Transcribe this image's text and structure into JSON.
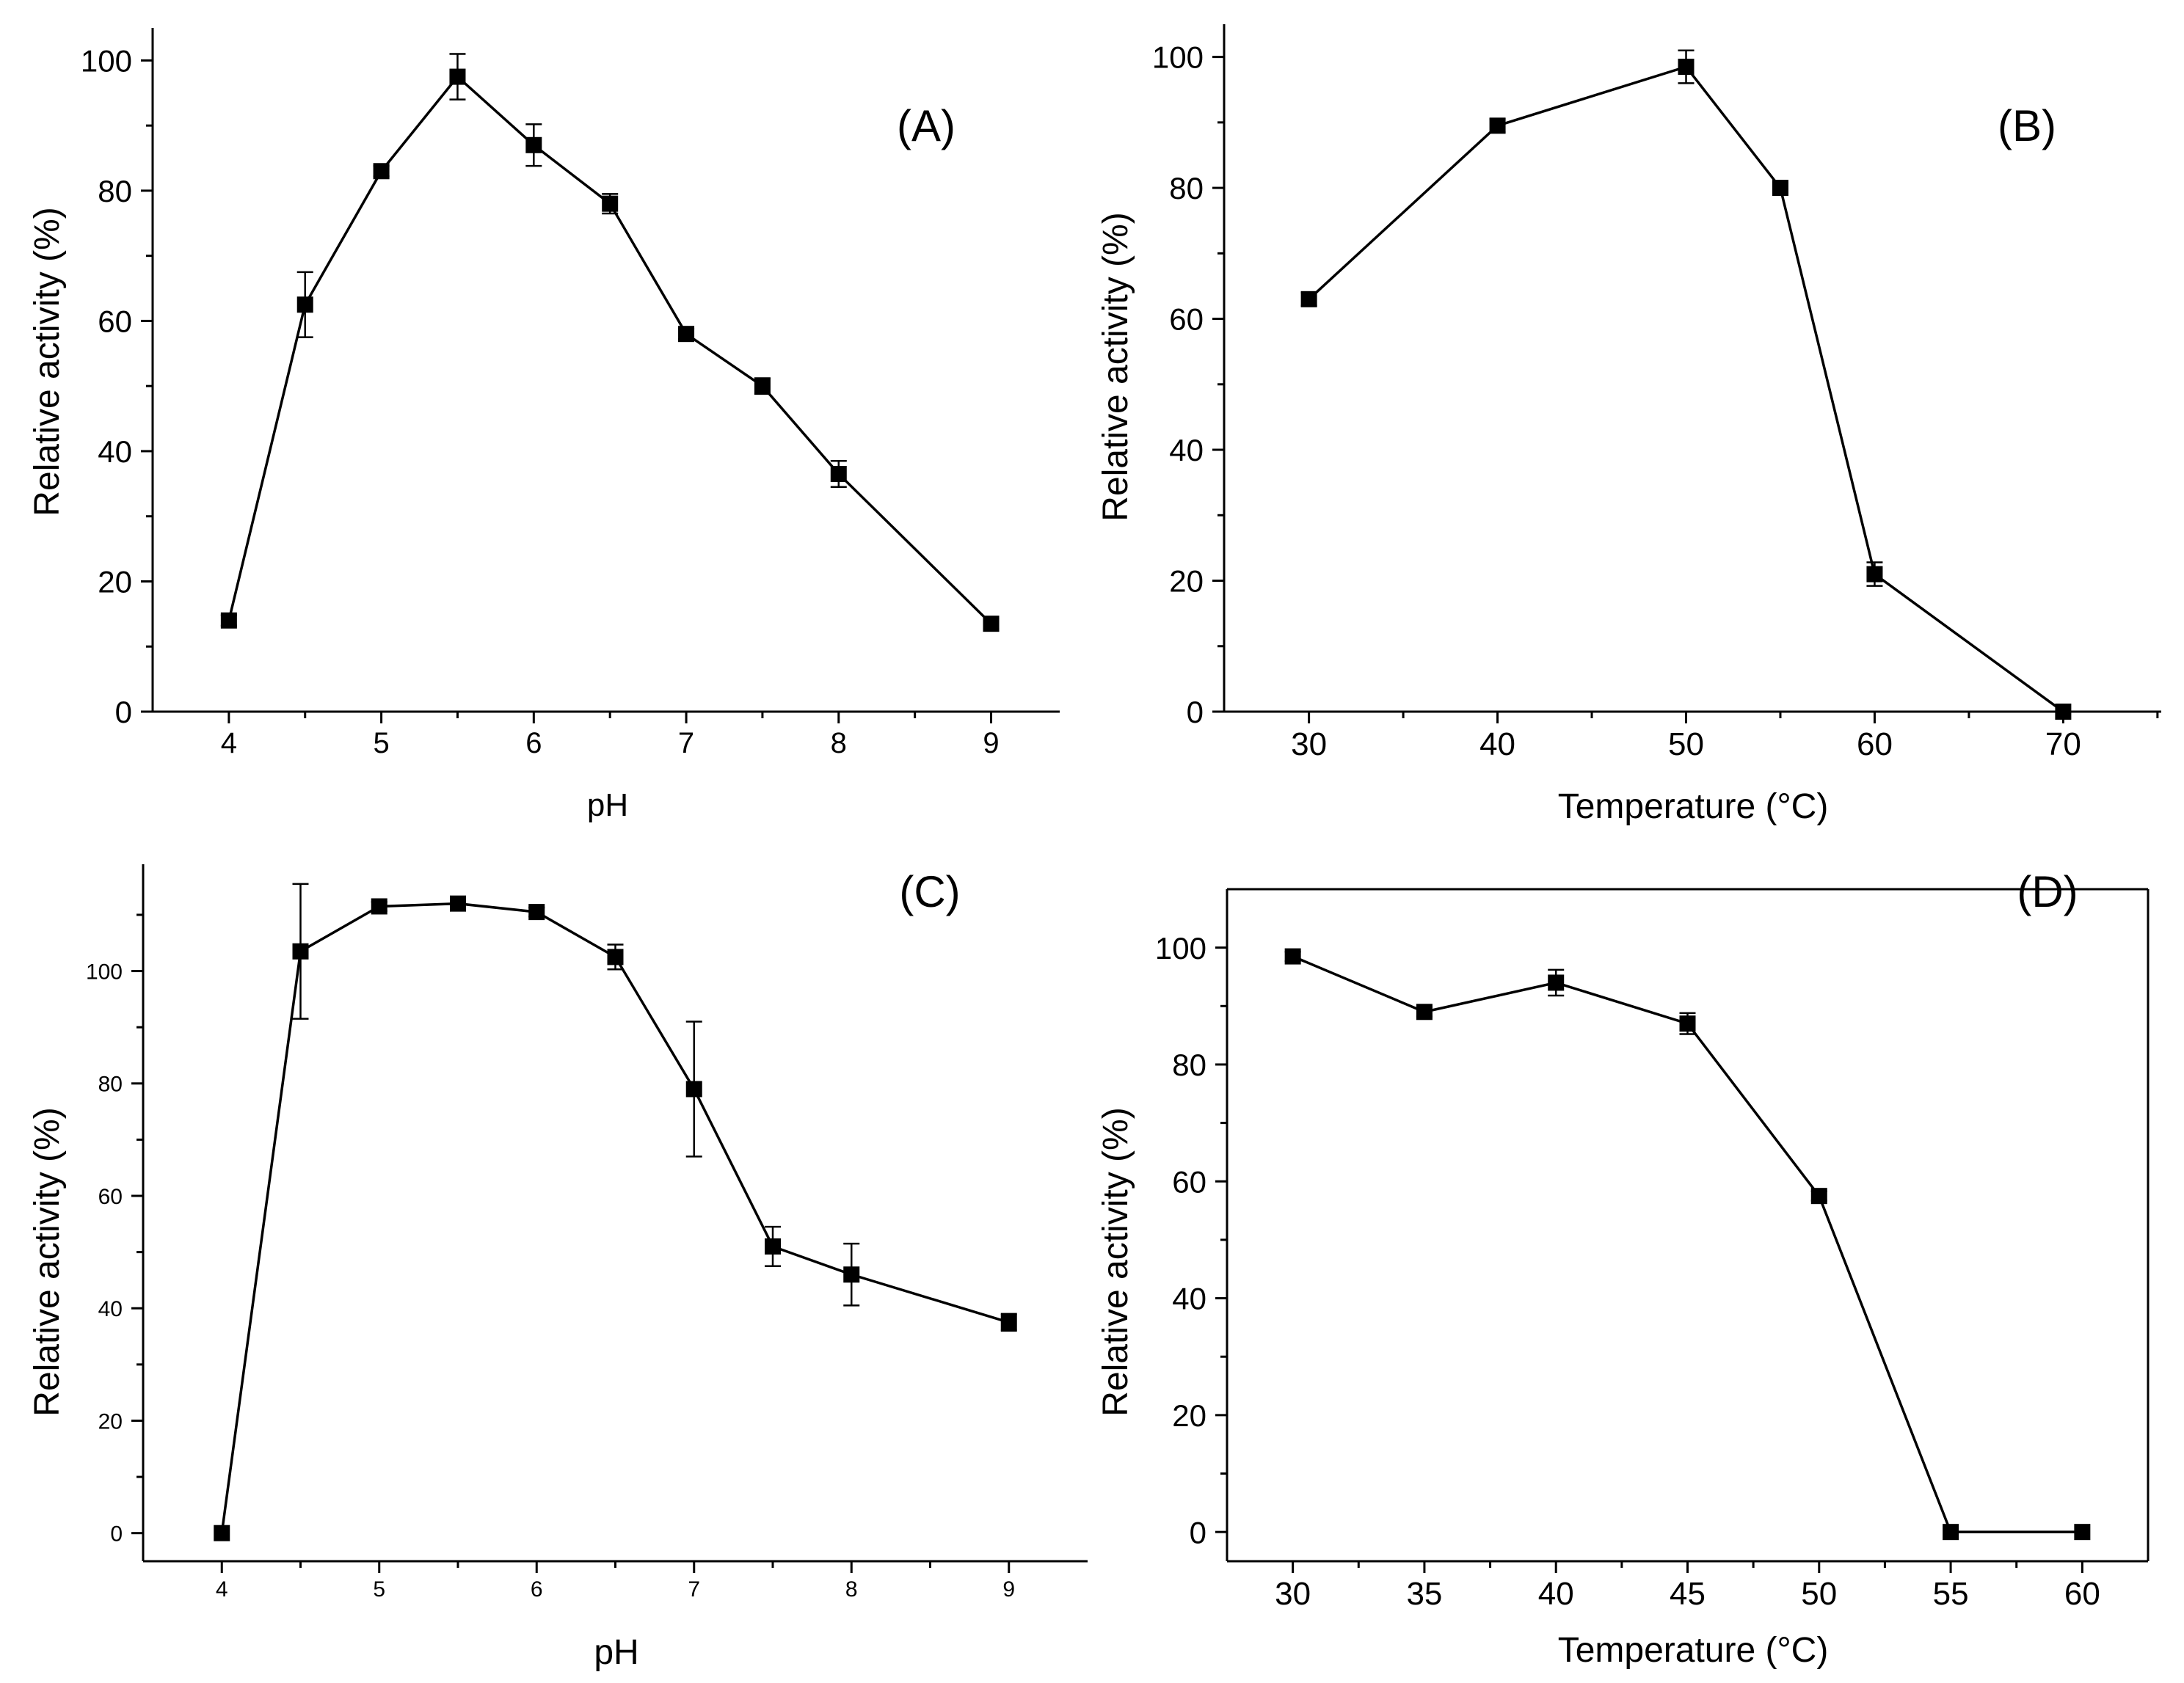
{
  "figure": {
    "colors": {
      "line": "#000000",
      "marker": "#000000",
      "axis": "#000000",
      "background": "#ffffff"
    }
  },
  "chart_data": [
    {
      "id": "A",
      "type": "line",
      "panel_label": "(A)",
      "title": "",
      "xlabel": "pH",
      "ylabel": "Relative activity (%)",
      "xlim": [
        3.5,
        9.45
      ],
      "ylim": [
        0,
        105
      ],
      "xticks": [
        4,
        5,
        6,
        7,
        8,
        9
      ],
      "yticks": [
        0,
        20,
        40,
        60,
        80,
        100
      ],
      "grid": false,
      "series": [
        {
          "name": "relative activity",
          "marker": "square",
          "x": [
            4,
            4.5,
            5,
            5.5,
            6,
            6.5,
            7,
            7.5,
            8,
            9
          ],
          "y": [
            14,
            62.5,
            83,
            97.5,
            87,
            78,
            58,
            50,
            36.5,
            13.5
          ],
          "err": [
            0.8,
            5,
            0.8,
            3.5,
            3.2,
            1.5,
            0.8,
            1.2,
            2,
            0.8
          ]
        }
      ]
    },
    {
      "id": "B",
      "type": "line",
      "panel_label": "(B)",
      "title": "",
      "xlabel": "Temperature (°C)",
      "ylabel": "Relative activity (%)",
      "xlim": [
        25.5,
        75.2
      ],
      "ylim": [
        0,
        105
      ],
      "xticks": [
        30,
        40,
        50,
        60,
        70
      ],
      "yticks": [
        0,
        20,
        40,
        60,
        80,
        100
      ],
      "grid": false,
      "series": [
        {
          "name": "relative activity",
          "marker": "square",
          "x": [
            30,
            40,
            50,
            55,
            60,
            70
          ],
          "y": [
            63,
            89.5,
            98.5,
            80,
            21,
            0
          ],
          "err": [
            1,
            1,
            2.5,
            0.8,
            1.8,
            0.5
          ]
        }
      ]
    },
    {
      "id": "C",
      "type": "line",
      "panel_label": "(C)",
      "title": "",
      "xlabel": "pH",
      "ylabel": "Relative activity (%)",
      "xlim": [
        3.5,
        9.5
      ],
      "ylim": [
        -5,
        119
      ],
      "xticks": [
        4,
        5,
        6,
        7,
        8,
        9
      ],
      "yticks": [
        0,
        20,
        40,
        60,
        80,
        100
      ],
      "grid": false,
      "series": [
        {
          "name": "relative activity",
          "marker": "square",
          "x": [
            4,
            4.5,
            5,
            5.5,
            6,
            6.5,
            7,
            7.5,
            8,
            9
          ],
          "y": [
            0,
            103.5,
            111.5,
            112,
            110.5,
            102.5,
            79,
            51,
            46,
            37.5
          ],
          "err": [
            0.5,
            12,
            0.8,
            0.8,
            0.8,
            2.2,
            12,
            3.5,
            5.5,
            1.5
          ]
        }
      ]
    },
    {
      "id": "D",
      "type": "line",
      "panel_label": "(D)",
      "title": "",
      "xlabel": "Temperature (°C)",
      "ylabel": "Relative activity (%)",
      "xlim": [
        27.5,
        62.5
      ],
      "ylim": [
        -5,
        110
      ],
      "xticks": [
        30,
        35,
        40,
        45,
        50,
        55,
        60
      ],
      "yticks": [
        0,
        20,
        40,
        60,
        80,
        100
      ],
      "grid": false,
      "series": [
        {
          "name": "relative activity",
          "marker": "square",
          "x": [
            30,
            35,
            40,
            45,
            50,
            55,
            60
          ],
          "y": [
            98.5,
            89,
            94,
            87,
            57.5,
            0,
            0
          ],
          "err": [
            0.8,
            0.8,
            2.2,
            1.8,
            0.8,
            0.5,
            0.5
          ]
        }
      ]
    }
  ]
}
